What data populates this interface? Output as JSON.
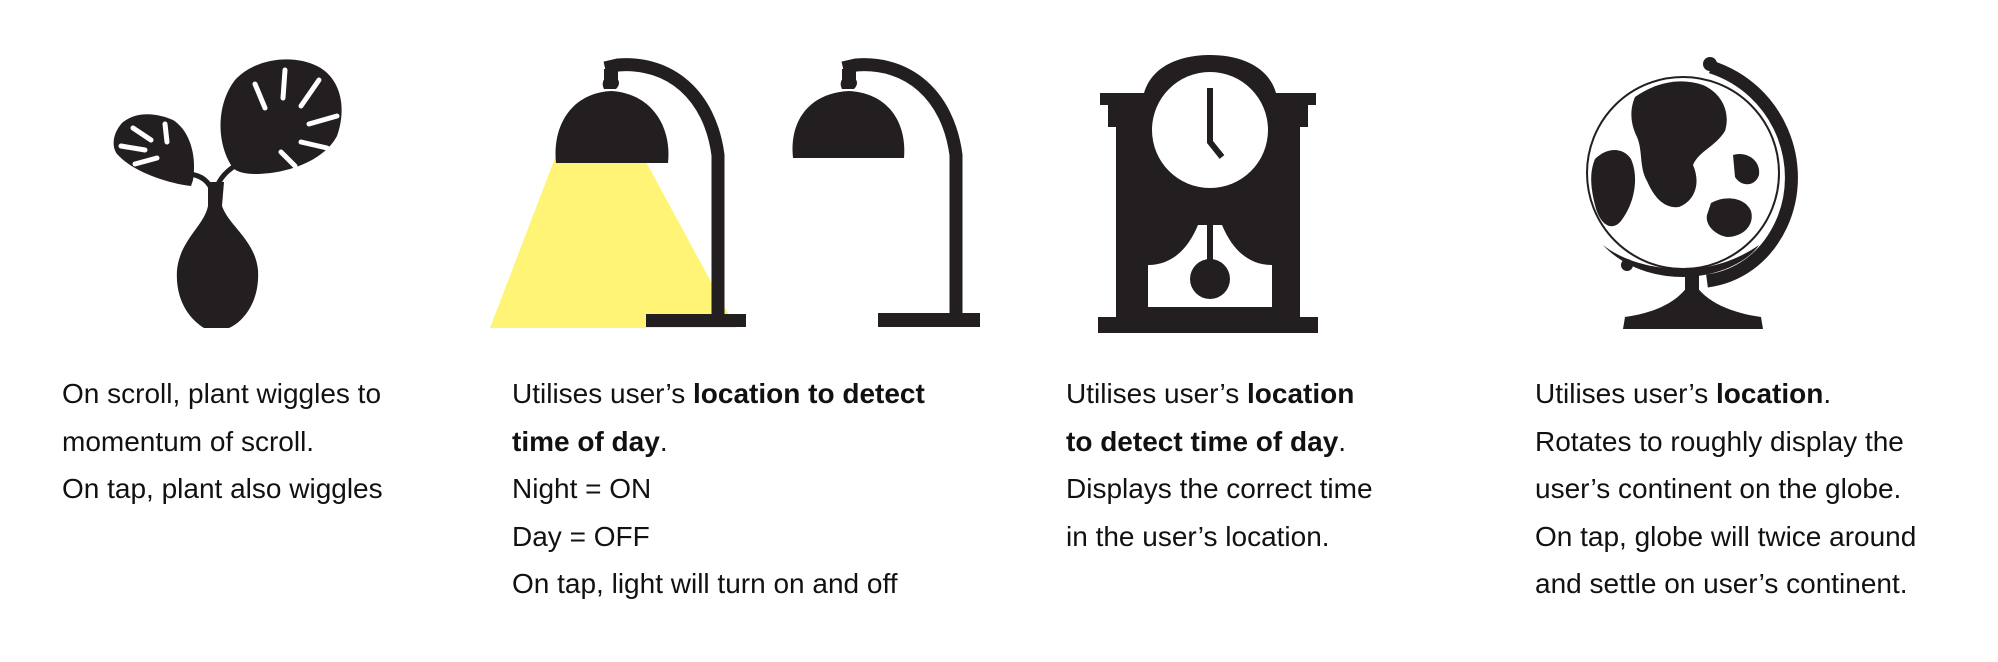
{
  "colors": {
    "ink": "#231f20",
    "lamp_light": "#fff475",
    "background": "#ffffff"
  },
  "icons": [
    "plant-icon",
    "lamp-on-icon",
    "lamp-off-icon",
    "pendulum-clock-icon",
    "globe-icon"
  ],
  "features": [
    {
      "id": "plant",
      "lines": [
        {
          "parts": [
            "On scroll, plant wiggles to"
          ]
        },
        {
          "parts": [
            "momentum of scroll."
          ]
        },
        {
          "parts": [
            "On tap, plant also wiggles"
          ]
        }
      ]
    },
    {
      "id": "lamp",
      "lines": [
        {
          "parts": [
            "Utilises user’s ",
            "location to detect",
            ""
          ]
        },
        {
          "parts": [
            "",
            "time of day",
            "."
          ]
        },
        {
          "parts": [
            "Night = ON"
          ]
        },
        {
          "parts": [
            "Day = OFF"
          ]
        },
        {
          "parts": [
            "On tap, light will turn on and off"
          ]
        }
      ]
    },
    {
      "id": "clock",
      "lines": [
        {
          "parts": [
            "Utilises user’s ",
            "location",
            ""
          ]
        },
        {
          "parts": [
            "",
            "to detect time of day",
            "."
          ]
        },
        {
          "parts": [
            "Displays the correct time"
          ]
        },
        {
          "parts": [
            "in the user’s location."
          ]
        }
      ]
    },
    {
      "id": "globe",
      "lines": [
        {
          "parts": [
            "Utilises user’s ",
            "location",
            "."
          ]
        },
        {
          "parts": [
            "Rotates to roughly display the"
          ]
        },
        {
          "parts": [
            "user’s continent on the globe."
          ]
        },
        {
          "parts": [
            "On tap, globe will twice around"
          ]
        },
        {
          "parts": [
            "and settle on user’s continent."
          ]
        }
      ]
    }
  ]
}
